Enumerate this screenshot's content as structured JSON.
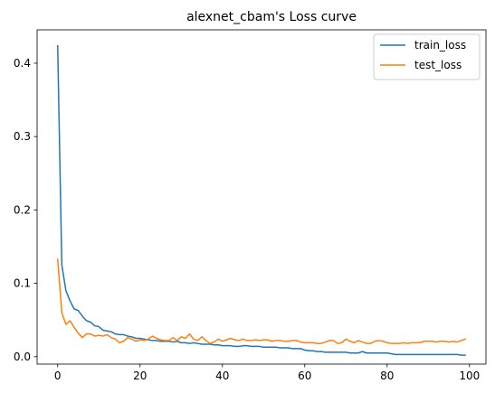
{
  "chart_data": {
    "type": "line",
    "title": "alexnet_cbam's Loss curve",
    "xlabel": "",
    "ylabel": "",
    "xlim": [
      -5,
      104
    ],
    "ylim": [
      -0.0101,
      0.4455
    ],
    "xticks": [
      0,
      20,
      40,
      60,
      80,
      100
    ],
    "xtick_labels": [
      "0",
      "20",
      "40",
      "60",
      "80",
      "100"
    ],
    "yticks": [
      0.0,
      0.1,
      0.2,
      0.3,
      0.4
    ],
    "ytick_labels": [
      "0.0",
      "0.1",
      "0.2",
      "0.3",
      "0.4"
    ],
    "legend_position": "top-right",
    "grid": false,
    "x": [
      0,
      1,
      2,
      3,
      4,
      5,
      6,
      7,
      8,
      9,
      10,
      11,
      12,
      13,
      14,
      15,
      16,
      17,
      18,
      19,
      20,
      21,
      22,
      23,
      24,
      25,
      26,
      27,
      28,
      29,
      30,
      31,
      32,
      33,
      34,
      35,
      36,
      37,
      38,
      39,
      40,
      41,
      42,
      43,
      44,
      45,
      46,
      47,
      48,
      49,
      50,
      51,
      52,
      53,
      54,
      55,
      56,
      57,
      58,
      59,
      60,
      61,
      62,
      63,
      64,
      65,
      66,
      67,
      68,
      69,
      70,
      71,
      72,
      73,
      74,
      75,
      76,
      77,
      78,
      79,
      80,
      81,
      82,
      83,
      84,
      85,
      86,
      87,
      88,
      89,
      90,
      91,
      92,
      93,
      94,
      95,
      96,
      97,
      98,
      99
    ],
    "series": [
      {
        "name": "train_loss",
        "color": "#1f77b4",
        "values": [
          0.424,
          0.125,
          0.09,
          0.076,
          0.065,
          0.063,
          0.055,
          0.049,
          0.047,
          0.042,
          0.041,
          0.036,
          0.035,
          0.034,
          0.031,
          0.03,
          0.03,
          0.028,
          0.027,
          0.025,
          0.025,
          0.024,
          0.023,
          0.022,
          0.022,
          0.021,
          0.021,
          0.021,
          0.02,
          0.021,
          0.019,
          0.019,
          0.018,
          0.019,
          0.018,
          0.017,
          0.017,
          0.017,
          0.016,
          0.016,
          0.015,
          0.015,
          0.015,
          0.014,
          0.014,
          0.015,
          0.015,
          0.014,
          0.014,
          0.014,
          0.013,
          0.013,
          0.013,
          0.013,
          0.012,
          0.012,
          0.012,
          0.011,
          0.011,
          0.011,
          0.009,
          0.008,
          0.008,
          0.007,
          0.007,
          0.006,
          0.006,
          0.006,
          0.006,
          0.006,
          0.006,
          0.005,
          0.005,
          0.005,
          0.007,
          0.005,
          0.005,
          0.005,
          0.005,
          0.005,
          0.005,
          0.004,
          0.003,
          0.003,
          0.003,
          0.003,
          0.003,
          0.003,
          0.003,
          0.003,
          0.003,
          0.003,
          0.003,
          0.003,
          0.003,
          0.003,
          0.003,
          0.003,
          0.002,
          0.002
        ]
      },
      {
        "name": "test_loss",
        "color": "#ff7f0e",
        "values": [
          0.133,
          0.06,
          0.044,
          0.049,
          0.04,
          0.032,
          0.026,
          0.031,
          0.031,
          0.028,
          0.029,
          0.028,
          0.03,
          0.026,
          0.024,
          0.019,
          0.021,
          0.026,
          0.024,
          0.021,
          0.023,
          0.022,
          0.024,
          0.028,
          0.025,
          0.023,
          0.022,
          0.022,
          0.026,
          0.022,
          0.027,
          0.025,
          0.031,
          0.024,
          0.022,
          0.027,
          0.022,
          0.018,
          0.02,
          0.024,
          0.021,
          0.023,
          0.025,
          0.023,
          0.022,
          0.024,
          0.022,
          0.022,
          0.023,
          0.022,
          0.023,
          0.023,
          0.021,
          0.022,
          0.022,
          0.021,
          0.021,
          0.022,
          0.022,
          0.02,
          0.019,
          0.019,
          0.019,
          0.018,
          0.018,
          0.02,
          0.022,
          0.022,
          0.018,
          0.019,
          0.024,
          0.021,
          0.019,
          0.022,
          0.02,
          0.018,
          0.018,
          0.021,
          0.022,
          0.021,
          0.019,
          0.018,
          0.018,
          0.018,
          0.019,
          0.018,
          0.019,
          0.019,
          0.019,
          0.021,
          0.021,
          0.021,
          0.02,
          0.021,
          0.021,
          0.02,
          0.021,
          0.02,
          0.022,
          0.024
        ]
      }
    ]
  }
}
